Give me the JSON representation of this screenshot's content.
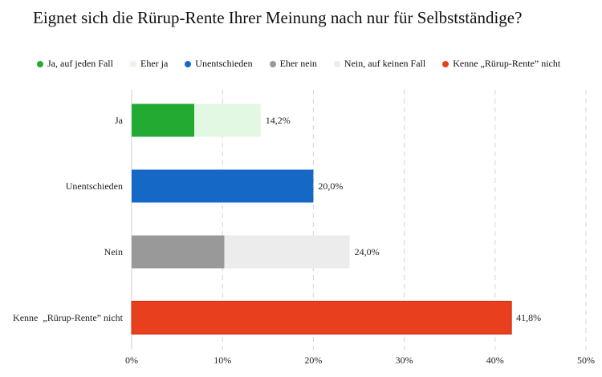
{
  "chart_data": {
    "type": "bar",
    "orientation": "horizontal",
    "stacked": true,
    "title": "Eignet sich die Rürup-Rente Ihrer Meinung nach nur für Selbstständige?",
    "legend_position": "top",
    "grid": true,
    "xlim": [
      0,
      50
    ],
    "x_ticks": [
      "0%",
      "10%",
      "20%",
      "30%",
      "40%",
      "50%"
    ],
    "categories": [
      "Ja",
      "Unentschieden",
      "Nein",
      "Kenne  „Rürup-Rente” nicht"
    ],
    "series": [
      {
        "name": "Ja, auf jeden Fall",
        "color": "#22aa33",
        "values": [
          6.9,
          0,
          0,
          0
        ]
      },
      {
        "name": "Eher ja",
        "color": "#e2f8e2",
        "values": [
          7.3,
          0,
          0,
          0
        ]
      },
      {
        "name": "Unentschieden",
        "color": "#1668c7",
        "values": [
          0,
          20.0,
          0,
          0
        ]
      },
      {
        "name": "Eher nein",
        "color": "#999999",
        "values": [
          0,
          0,
          10.2,
          0
        ]
      },
      {
        "name": "Nein, auf keinen Fall",
        "color": "#ececec",
        "values": [
          0,
          0,
          13.8,
          0
        ]
      },
      {
        "name": "Kenne  „Rürup-Rente” nicht",
        "color": "#e8401e",
        "values": [
          0,
          0,
          0,
          41.8
        ]
      }
    ],
    "totals": [
      "14,2%",
      "20,0%",
      "24,0%",
      "41,8%"
    ]
  }
}
